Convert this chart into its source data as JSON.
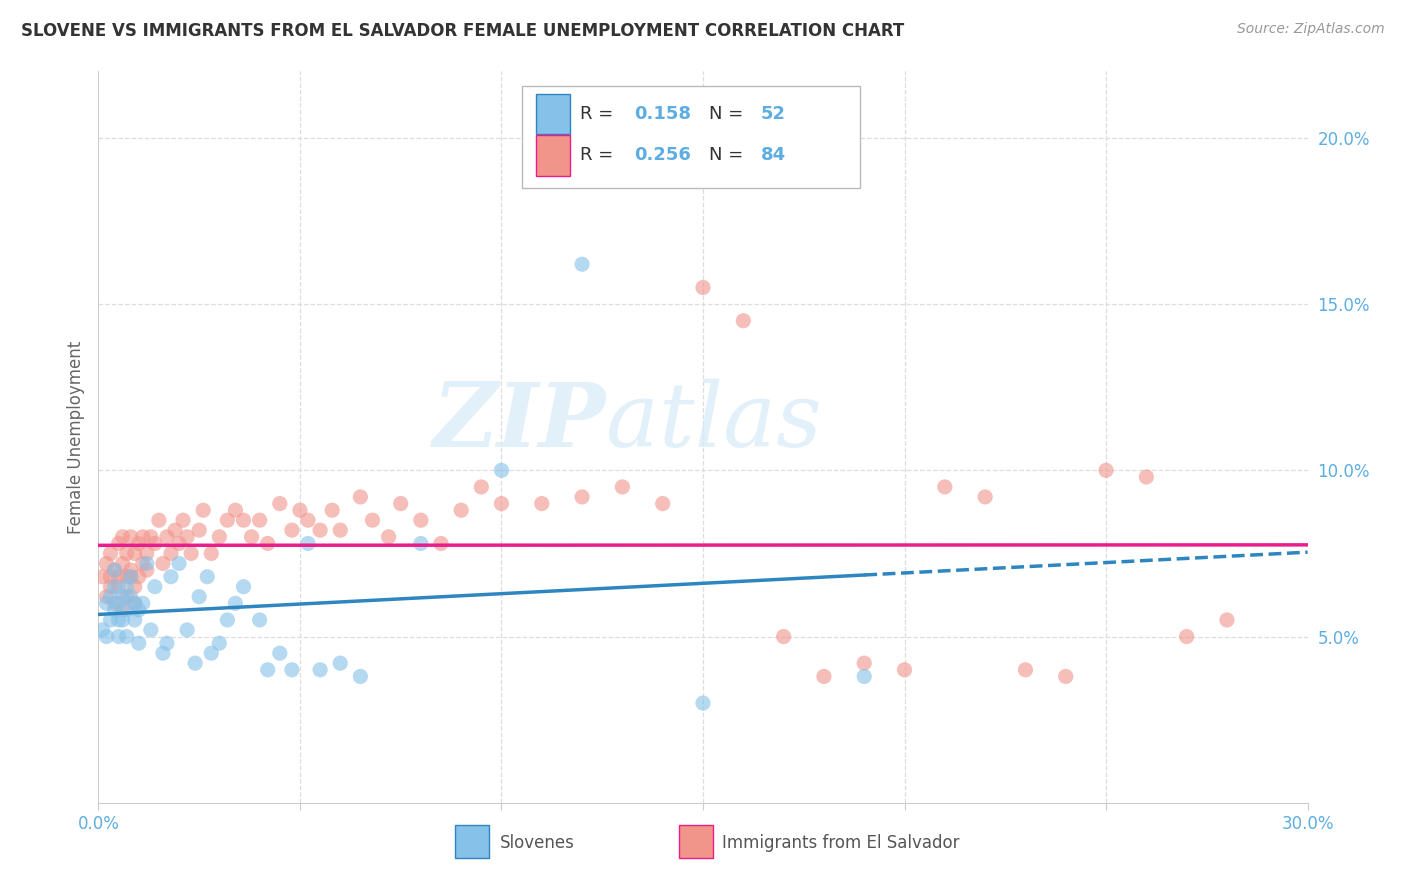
{
  "title": "SLOVENE VS IMMIGRANTS FROM EL SALVADOR FEMALE UNEMPLOYMENT CORRELATION CHART",
  "source": "Source: ZipAtlas.com",
  "xlabel_slovenes": "Slovenes",
  "xlabel_salvador": "Immigrants from El Salvador",
  "ylabel": "Female Unemployment",
  "x_min": 0.0,
  "x_max": 0.3,
  "y_min": 0.0,
  "y_max": 0.22,
  "y_ticks": [
    0.05,
    0.1,
    0.15,
    0.2
  ],
  "y_tick_labels": [
    "5.0%",
    "10.0%",
    "15.0%",
    "20.0%"
  ],
  "legend_slovene": "R =  0.158   N = 52",
  "legend_salvador": "R =  0.256   N = 84",
  "color_slovene": "#85C1E9",
  "color_salvador": "#F1948A",
  "color_slovene_line": "#2E86C1",
  "color_salvador_line": "#E91E8C",
  "watermark_zip": "ZIP",
  "watermark_atlas": "atlas",
  "background_color": "#FFFFFF",
  "grid_color": "#DDDDDD",
  "tick_color": "#5DADE2",
  "slovene_x": [
    0.001,
    0.002,
    0.002,
    0.003,
    0.003,
    0.004,
    0.004,
    0.004,
    0.005,
    0.005,
    0.005,
    0.006,
    0.006,
    0.007,
    0.007,
    0.007,
    0.008,
    0.008,
    0.009,
    0.009,
    0.01,
    0.01,
    0.011,
    0.012,
    0.013,
    0.014,
    0.016,
    0.017,
    0.018,
    0.02,
    0.022,
    0.024,
    0.025,
    0.027,
    0.028,
    0.03,
    0.032,
    0.034,
    0.036,
    0.04,
    0.042,
    0.045,
    0.048,
    0.052,
    0.055,
    0.06,
    0.065,
    0.08,
    0.1,
    0.12,
    0.15,
    0.19
  ],
  "slovene_y": [
    0.052,
    0.05,
    0.06,
    0.055,
    0.062,
    0.058,
    0.065,
    0.07,
    0.05,
    0.055,
    0.06,
    0.055,
    0.062,
    0.05,
    0.058,
    0.065,
    0.062,
    0.068,
    0.055,
    0.06,
    0.048,
    0.058,
    0.06,
    0.072,
    0.052,
    0.065,
    0.045,
    0.048,
    0.068,
    0.072,
    0.052,
    0.042,
    0.062,
    0.068,
    0.045,
    0.048,
    0.055,
    0.06,
    0.065,
    0.055,
    0.04,
    0.045,
    0.04,
    0.078,
    0.04,
    0.042,
    0.038,
    0.078,
    0.1,
    0.162,
    0.03,
    0.038
  ],
  "salvador_x": [
    0.001,
    0.002,
    0.003,
    0.003,
    0.004,
    0.005,
    0.005,
    0.006,
    0.006,
    0.007,
    0.007,
    0.008,
    0.008,
    0.009,
    0.009,
    0.01,
    0.01,
    0.011,
    0.011,
    0.012,
    0.012,
    0.013,
    0.014,
    0.015,
    0.016,
    0.017,
    0.018,
    0.019,
    0.02,
    0.021,
    0.022,
    0.023,
    0.025,
    0.026,
    0.028,
    0.03,
    0.032,
    0.034,
    0.036,
    0.038,
    0.04,
    0.042,
    0.045,
    0.048,
    0.05,
    0.052,
    0.055,
    0.058,
    0.06,
    0.065,
    0.068,
    0.072,
    0.075,
    0.08,
    0.085,
    0.09,
    0.095,
    0.1,
    0.11,
    0.12,
    0.13,
    0.14,
    0.15,
    0.16,
    0.17,
    0.18,
    0.19,
    0.2,
    0.21,
    0.22,
    0.23,
    0.24,
    0.25,
    0.26,
    0.27,
    0.28,
    0.002,
    0.003,
    0.004,
    0.005,
    0.006,
    0.007,
    0.008,
    0.009
  ],
  "salvador_y": [
    0.068,
    0.072,
    0.065,
    0.075,
    0.07,
    0.068,
    0.078,
    0.072,
    0.08,
    0.068,
    0.075,
    0.07,
    0.08,
    0.065,
    0.075,
    0.068,
    0.078,
    0.072,
    0.08,
    0.07,
    0.075,
    0.08,
    0.078,
    0.085,
    0.072,
    0.08,
    0.075,
    0.082,
    0.078,
    0.085,
    0.08,
    0.075,
    0.082,
    0.088,
    0.075,
    0.08,
    0.085,
    0.088,
    0.085,
    0.08,
    0.085,
    0.078,
    0.09,
    0.082,
    0.088,
    0.085,
    0.082,
    0.088,
    0.082,
    0.092,
    0.085,
    0.08,
    0.09,
    0.085,
    0.078,
    0.088,
    0.095,
    0.09,
    0.09,
    0.092,
    0.095,
    0.09,
    0.155,
    0.145,
    0.05,
    0.038,
    0.042,
    0.04,
    0.095,
    0.092,
    0.04,
    0.038,
    0.1,
    0.098,
    0.05,
    0.055,
    0.062,
    0.068,
    0.06,
    0.065,
    0.058,
    0.062,
    0.068,
    0.06
  ]
}
